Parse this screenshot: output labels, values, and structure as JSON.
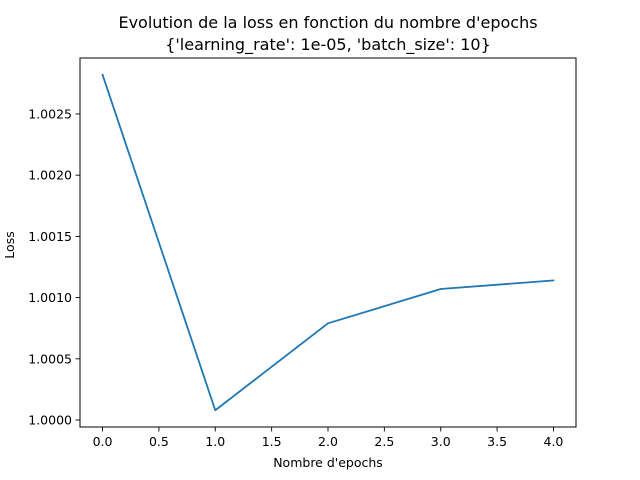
{
  "chart_data": {
    "type": "line",
    "title": "Evolution de la loss en fonction du nombre d'epochs",
    "subtitle": "{'learning_rate': 1e-05, 'batch_size': 10}",
    "xlabel": "Nombre d'epochs",
    "ylabel": "Loss",
    "x": [
      0,
      1,
      2,
      3,
      4
    ],
    "series": [
      {
        "values": [
          1.00282,
          1.00008,
          1.00079,
          1.00107,
          1.00114
        ],
        "color": "#1f77b4"
      }
    ],
    "xticks": [
      0.0,
      0.5,
      1.0,
      1.5,
      2.0,
      2.5,
      3.0,
      3.5,
      4.0
    ],
    "xtick_labels": [
      "0.0",
      "0.5",
      "1.0",
      "1.5",
      "2.0",
      "2.5",
      "3.0",
      "3.5",
      "4.0"
    ],
    "yticks": [
      1.0,
      1.0005,
      1.001,
      1.0015,
      1.002,
      1.0025
    ],
    "ytick_labels": [
      "1.0000",
      "1.0005",
      "1.0010",
      "1.0015",
      "1.0020",
      "1.0025"
    ],
    "xlim": [
      -0.2,
      4.2
    ],
    "ylim": [
      0.999943,
      1.002957
    ],
    "grid": false,
    "legend": "none"
  }
}
